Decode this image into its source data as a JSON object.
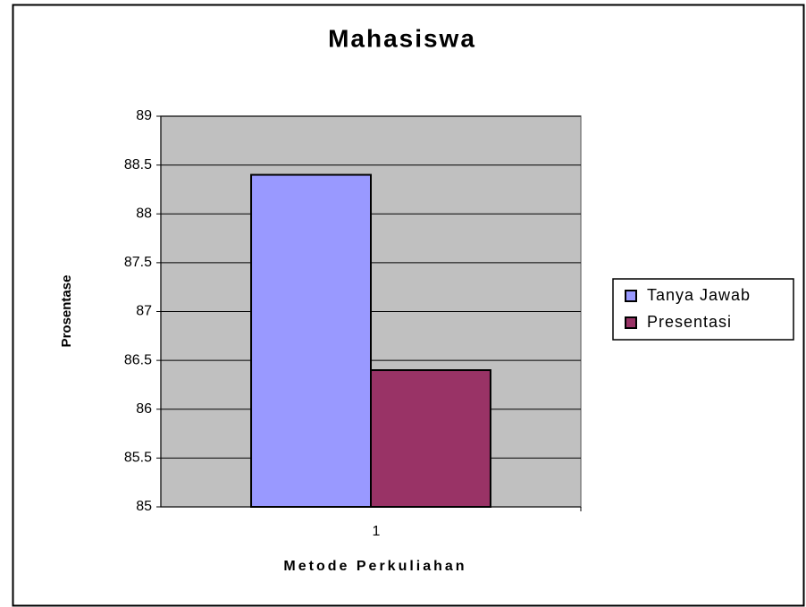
{
  "chart_data": {
    "type": "bar",
    "title": "Mahasiswa",
    "x_label": "Metode Perkuliahan",
    "y_label": "Prosentase",
    "categories": [
      "1"
    ],
    "series": [
      {
        "name": "Tanya Jawab",
        "color": "#9999ff",
        "values": [
          88.4
        ]
      },
      {
        "name": "Presentasi",
        "color": "#993366",
        "values": [
          86.4
        ]
      }
    ],
    "ylim": [
      85,
      89
    ],
    "yticks": [
      85,
      85.5,
      86,
      86.5,
      87,
      87.5,
      88,
      88.5,
      89
    ],
    "grid": true,
    "legend": "right"
  }
}
